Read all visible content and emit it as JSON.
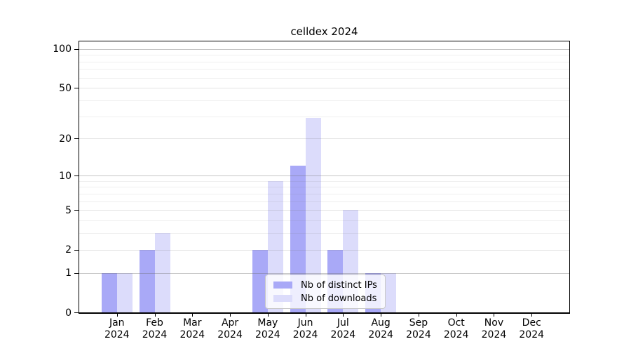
{
  "chart_data": {
    "type": "bar",
    "title": "celldex 2024",
    "x_categories": [
      "Jan",
      "Feb",
      "Mar",
      "Apr",
      "May",
      "Jun",
      "Jul",
      "Aug",
      "Sep",
      "Oct",
      "Nov",
      "Dec"
    ],
    "x_year": "2024",
    "series": [
      {
        "name": "Nb of distinct IPs",
        "color": "#a9a9f7",
        "values": [
          1,
          2,
          0,
          0,
          2,
          12,
          2,
          1,
          0,
          0,
          0,
          0
        ]
      },
      {
        "name": "Nb of downloads",
        "color": "#dcdcfb",
        "values": [
          1,
          3,
          0,
          0,
          9,
          29,
          5,
          1,
          0,
          0,
          0,
          0
        ]
      }
    ],
    "yscale": "log1p",
    "ylim": [
      0,
      120
    ],
    "yticks": [
      0,
      1,
      2,
      5,
      10,
      20,
      50,
      100
    ],
    "minor_yticks": [
      3,
      4,
      6,
      7,
      8,
      9,
      30,
      40,
      60,
      70,
      80,
      90
    ],
    "major_gridlines_at": [
      1,
      10,
      100
    ],
    "grid": true,
    "legend_position": "lower center",
    "colors": {
      "grid_major": "#c6c6c6",
      "grid_labeled": "#e3e3e3",
      "grid_minor": "#efefef",
      "axis": "#000000",
      "background": "#ffffff"
    }
  }
}
